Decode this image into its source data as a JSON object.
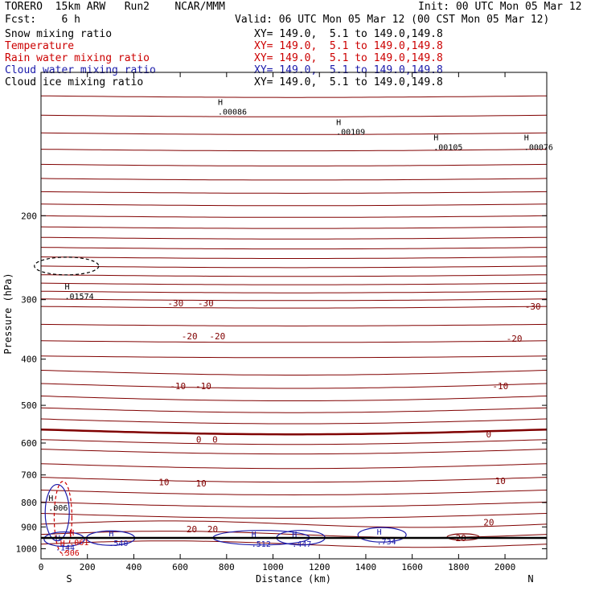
{
  "header": {
    "model": "TORERO  15km ARW   Run2    NCAR/MMM",
    "init": "Init: 00 UTC Mon 05 Mar 12",
    "fcst": "Fcst:    6 h",
    "valid": "Valid: 06 UTC Mon 05 Mar 12 (00 CST Mon 05 Mar 12)"
  },
  "fields": [
    {
      "name": "Snow mixing ratio",
      "color": "#000000",
      "xy": "XY= 149.0,  5.1 to 149.0,149.8"
    },
    {
      "name": "Temperature",
      "color": "#cc0000",
      "xy": "XY= 149.0,  5.1 to 149.0,149.8"
    },
    {
      "name": "Rain water mixing ratio",
      "color": "#cc0000",
      "xy": "XY= 149.0,  5.1 to 149.0,149.8"
    },
    {
      "name": "Cloud water mixing ratio",
      "color": "#1a1aaa",
      "xy": "XY= 149.0,  5.1 to 149.0,149.8"
    },
    {
      "name": "Cloud ice mixing ratio",
      "color": "#000000",
      "xy": "XY= 149.0,  5.1 to 149.0,149.8"
    }
  ],
  "chart_data": {
    "type": "line",
    "xlabel": "Distance (km)",
    "ylabel": "Pressure (hPa)",
    "xlim": [
      0,
      2180
    ],
    "ylim": [
      1050,
      100
    ],
    "x_ticks": [
      0,
      200,
      400,
      600,
      800,
      1000,
      1200,
      1400,
      1600,
      1800,
      2000
    ],
    "y_ticks": [
      200,
      300,
      400,
      500,
      600,
      700,
      800,
      900,
      1000
    ],
    "y_scale": "log",
    "x_end_labels": {
      "left": "S",
      "right": "N"
    },
    "temperature_labels": [
      {
        "text": "-30",
        "x": 580,
        "p": 305
      },
      {
        "text": "-30",
        "x": 710,
        "p": 305
      },
      {
        "text": "-30",
        "x": 2120,
        "p": 310
      },
      {
        "text": "-20",
        "x": 640,
        "p": 358
      },
      {
        "text": "-20",
        "x": 760,
        "p": 358
      },
      {
        "text": "-20",
        "x": 2040,
        "p": 362
      },
      {
        "text": "-10",
        "x": 590,
        "p": 455
      },
      {
        "text": "-10",
        "x": 700,
        "p": 455
      },
      {
        "text": "-10",
        "x": 1980,
        "p": 455
      },
      {
        "text": "0",
        "x": 680,
        "p": 590
      },
      {
        "text": "0",
        "x": 750,
        "p": 590
      },
      {
        "text": "0",
        "x": 1930,
        "p": 575
      },
      {
        "text": "10",
        "x": 530,
        "p": 725
      },
      {
        "text": "10",
        "x": 690,
        "p": 728
      },
      {
        "text": "10",
        "x": 1980,
        "p": 720
      },
      {
        "text": "20",
        "x": 650,
        "p": 910
      },
      {
        "text": "20",
        "x": 740,
        "p": 910
      },
      {
        "text": "20",
        "x": 1930,
        "p": 880
      },
      {
        "text": "20",
        "x": 1810,
        "p": 950
      }
    ],
    "temperature_contours_px": [],
    "maxima_labels": [
      {
        "text": ".00086",
        "x": 790,
        "p": 118,
        "color": "#000000"
      },
      {
        "text": ".00109",
        "x": 1300,
        "p": 130,
        "color": "#000000"
      },
      {
        "text": ".00105",
        "x": 1720,
        "p": 140,
        "color": "#000000"
      },
      {
        "text": ".00076",
        "x": 2110,
        "p": 140,
        "color": "#000000"
      },
      {
        "text": ".01574",
        "x": 130,
        "p": 288,
        "color": "#000000"
      },
      {
        "text": ".006",
        "x": 60,
        "p": 800,
        "color": "#000000"
      },
      {
        "text": ".540",
        "x": 320,
        "p": 950,
        "color": "#1a1aaa"
      },
      {
        "text": ".144",
        "x": 90,
        "p": 970,
        "color": "#1a1aaa"
      },
      {
        "text": ".061",
        "x": 150,
        "p": 945,
        "color": "#cc0000"
      },
      {
        "text": ".306",
        "x": 110,
        "p": 995,
        "color": "#cc0000"
      },
      {
        "text": ".512",
        "x": 935,
        "p": 952,
        "color": "#1a1aaa"
      },
      {
        "text": ".447",
        "x": 1110,
        "p": 952,
        "color": "#1a1aaa"
      },
      {
        "text": ".734",
        "x": 1475,
        "p": 942,
        "color": "#1a1aaa"
      }
    ]
  }
}
